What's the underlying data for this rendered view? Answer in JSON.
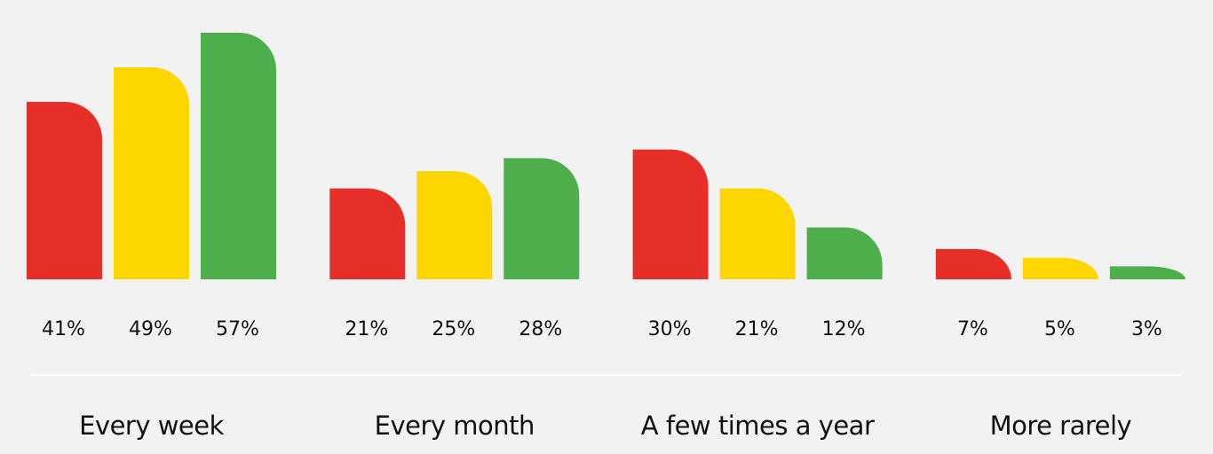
{
  "chart_data": {
    "type": "bar",
    "categories": [
      "Every week",
      "Every month",
      "A few times a year",
      "More rarely"
    ],
    "series": [
      {
        "color": "#e52f28",
        "values": [
          41,
          21,
          30,
          7
        ],
        "value_labels": [
          "41%",
          "21%",
          "30%",
          "7%"
        ]
      },
      {
        "color": "#fdd600",
        "values": [
          49,
          25,
          21,
          5
        ],
        "value_labels": [
          "49%",
          "25%",
          "21%",
          "5%"
        ]
      },
      {
        "color": "#4caf4c",
        "values": [
          57,
          28,
          12,
          3
        ],
        "value_labels": [
          "57%",
          "28%",
          "12%",
          "3%"
        ]
      }
    ]
  }
}
